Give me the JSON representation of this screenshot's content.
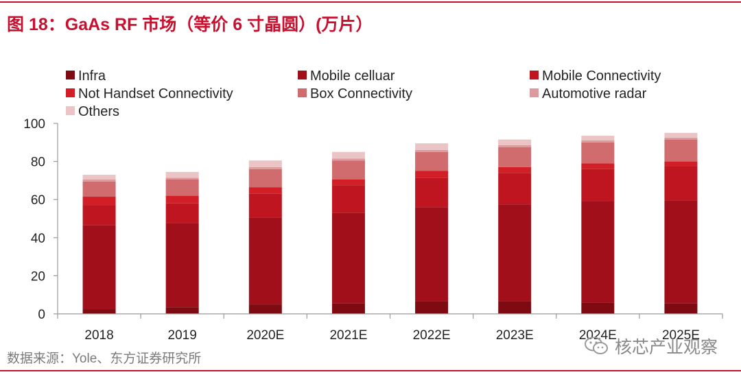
{
  "figure": {
    "title": "图 18：GaAs RF 市场（等价 6 寸晶圆）(万片）",
    "source": "数据来源：Yole、东方证券研究所",
    "watermark": "核芯产业观察",
    "watermark_icon": "wechat-icon"
  },
  "colors": {
    "accent": "#c8102e",
    "Infra": "#7e0b12",
    "Mobile celluar": "#a10f1a",
    "Mobile Connectivity": "#bf1520",
    "Not Handset Connectivity": "#d21e26",
    "Box Connectivity": "#d06b6e",
    "Automotive radar": "#dc9a9c",
    "Others": "#ebc4c5"
  },
  "chart_data": {
    "type": "bar",
    "stacked": true,
    "categories": [
      "2018",
      "2019",
      "2020E",
      "2021E",
      "2022E",
      "2023E",
      "2024E",
      "2025E"
    ],
    "ylim": [
      0,
      100
    ],
    "yticks": [
      0,
      20,
      40,
      60,
      80,
      100
    ],
    "legend_position": "top",
    "grid": false,
    "series": [
      {
        "name": "Infra",
        "values": [
          2.5,
          3.5,
          5,
          5.5,
          6.5,
          6.5,
          6,
          5.5
        ]
      },
      {
        "name": "Mobile celluar",
        "values": [
          44,
          44,
          45.5,
          47.5,
          49.5,
          51,
          53,
          54
        ]
      },
      {
        "name": "Mobile Connectivity",
        "values": [
          10.5,
          10.5,
          12.5,
          14.5,
          15.5,
          16.5,
          17,
          18
        ]
      },
      {
        "name": "Not Handset Connectivity",
        "values": [
          4.5,
          4,
          3.5,
          3,
          3.5,
          3,
          3,
          2.5
        ]
      },
      {
        "name": "Box Connectivity",
        "values": [
          8,
          8.5,
          9.5,
          10,
          10,
          10.5,
          11,
          11.5
        ]
      },
      {
        "name": "Automotive radar",
        "values": [
          1,
          1,
          1,
          1,
          1,
          1,
          1,
          1
        ]
      },
      {
        "name": "Others",
        "values": [
          2.5,
          3,
          3.5,
          3.5,
          3.5,
          3,
          2.5,
          2.5
        ]
      }
    ]
  }
}
